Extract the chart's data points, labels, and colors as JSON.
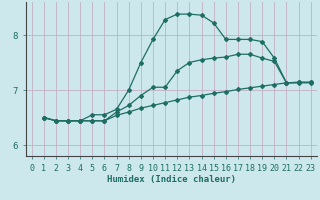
{
  "xlabel": "Humidex (Indice chaleur)",
  "bg_color": "#cce8ec",
  "grid_color": "#c4afc4",
  "line_color": "#1e6e64",
  "xlim": [
    -0.5,
    23.5
  ],
  "ylim": [
    5.8,
    8.6
  ],
  "yticks": [
    6,
    7,
    8
  ],
  "xticks": [
    0,
    1,
    2,
    3,
    4,
    5,
    6,
    7,
    8,
    9,
    10,
    11,
    12,
    13,
    14,
    15,
    16,
    17,
    18,
    19,
    20,
    21,
    22,
    23
  ],
  "line1_x": [
    1,
    2,
    3,
    4,
    5,
    6,
    7,
    8,
    9,
    10,
    11,
    12,
    13,
    14,
    15,
    16,
    17,
    18,
    19,
    20,
    21,
    22,
    23
  ],
  "line1_y": [
    6.5,
    6.44,
    6.44,
    6.44,
    6.44,
    6.44,
    6.54,
    6.6,
    6.67,
    6.72,
    6.77,
    6.82,
    6.87,
    6.9,
    6.94,
    6.97,
    7.01,
    7.04,
    7.07,
    7.1,
    7.13,
    7.13,
    7.13
  ],
  "line2_x": [
    1,
    2,
    3,
    4,
    5,
    6,
    7,
    8,
    9,
    10,
    11,
    12,
    13,
    14,
    15,
    16,
    17,
    18,
    19,
    20,
    21,
    22,
    23
  ],
  "line2_y": [
    6.5,
    6.44,
    6.44,
    6.44,
    6.44,
    6.44,
    6.6,
    6.72,
    6.9,
    7.05,
    7.05,
    7.35,
    7.5,
    7.55,
    7.58,
    7.6,
    7.65,
    7.65,
    7.58,
    7.52,
    7.13,
    7.14,
    7.14
  ],
  "line3_x": [
    1,
    2,
    3,
    4,
    5,
    6,
    7,
    8,
    9,
    10,
    11,
    12,
    13,
    14,
    15,
    16,
    17,
    18,
    19,
    20,
    21,
    22,
    23
  ],
  "line3_y": [
    6.5,
    6.44,
    6.44,
    6.44,
    6.55,
    6.55,
    6.65,
    7.0,
    7.5,
    7.92,
    8.28,
    8.38,
    8.38,
    8.36,
    8.22,
    7.92,
    7.92,
    7.92,
    7.88,
    7.58,
    7.13,
    7.14,
    7.14
  ],
  "marker": "D",
  "markersize": 2.0,
  "linewidth": 0.9
}
